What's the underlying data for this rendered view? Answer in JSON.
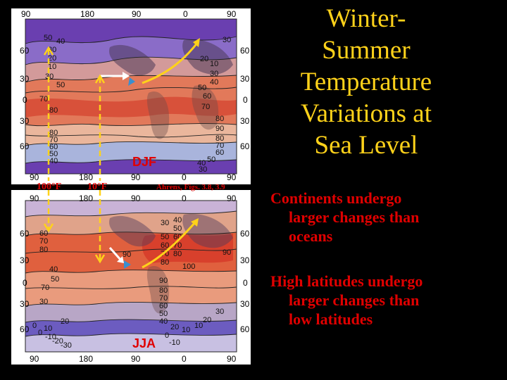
{
  "title_lines": [
    "Winter-",
    "Summer",
    "Temperature",
    "Variations at",
    "Sea Level"
  ],
  "bullets": [
    [
      "Continents undergo",
      "larger changes than",
      "oceans"
    ],
    [
      "High latitudes undergo",
      "larger changes than",
      "low latitudes"
    ]
  ],
  "maps": {
    "top": {
      "season_label": "DJF",
      "lon_labels_top": [
        "90",
        "180",
        "90",
        "0",
        "90"
      ],
      "lon_labels_bottom": [
        "90",
        "180",
        "90",
        "0",
        "90"
      ],
      "lat_labels": [
        "60",
        "30",
        "0",
        "30",
        "60"
      ],
      "contours": [
        "50",
        "40",
        "30",
        "20",
        "10",
        "30",
        "50",
        "70",
        "80",
        "80",
        "70",
        "60",
        "50",
        "40",
        "30",
        "20",
        "10",
        "30",
        "40",
        "50",
        "60",
        "70",
        "80",
        "90",
        "80",
        "70",
        "60",
        "50",
        "40",
        "30"
      ]
    },
    "bottom": {
      "season_label": "JJA",
      "lon_labels_top": [
        "90",
        "180",
        "90",
        "0",
        "90"
      ],
      "lon_labels_bottom": [
        "90",
        "180",
        "90",
        "0",
        "90"
      ],
      "lat_labels": [
        "60",
        "30",
        "0",
        "30",
        "60"
      ],
      "contours": [
        "60",
        "70",
        "80",
        "50",
        "60",
        "70",
        "80",
        "40",
        "50",
        "60",
        "70",
        "80",
        "90",
        "100",
        "90",
        "90",
        "80",
        "70",
        "60",
        "50",
        "40",
        "30",
        "20",
        "10",
        "0",
        "-10",
        "-20",
        "-30",
        "20",
        "10",
        "0",
        "-10",
        "0",
        "10",
        "20",
        "30",
        "30",
        "40",
        "50",
        "70"
      ]
    }
  },
  "annotations": {
    "range_left": "100°F",
    "range_right": "10°F",
    "source": "Ahrens, Figs. 3.8, 3.9"
  },
  "colors": {
    "title": "#ffd21a",
    "bullet_text": "#e00000",
    "annotation": "#e00000",
    "arrow_yellow": "#ffd21a",
    "arrow_white": "#ffffff",
    "arrow_blue": "#3a8fd0"
  }
}
